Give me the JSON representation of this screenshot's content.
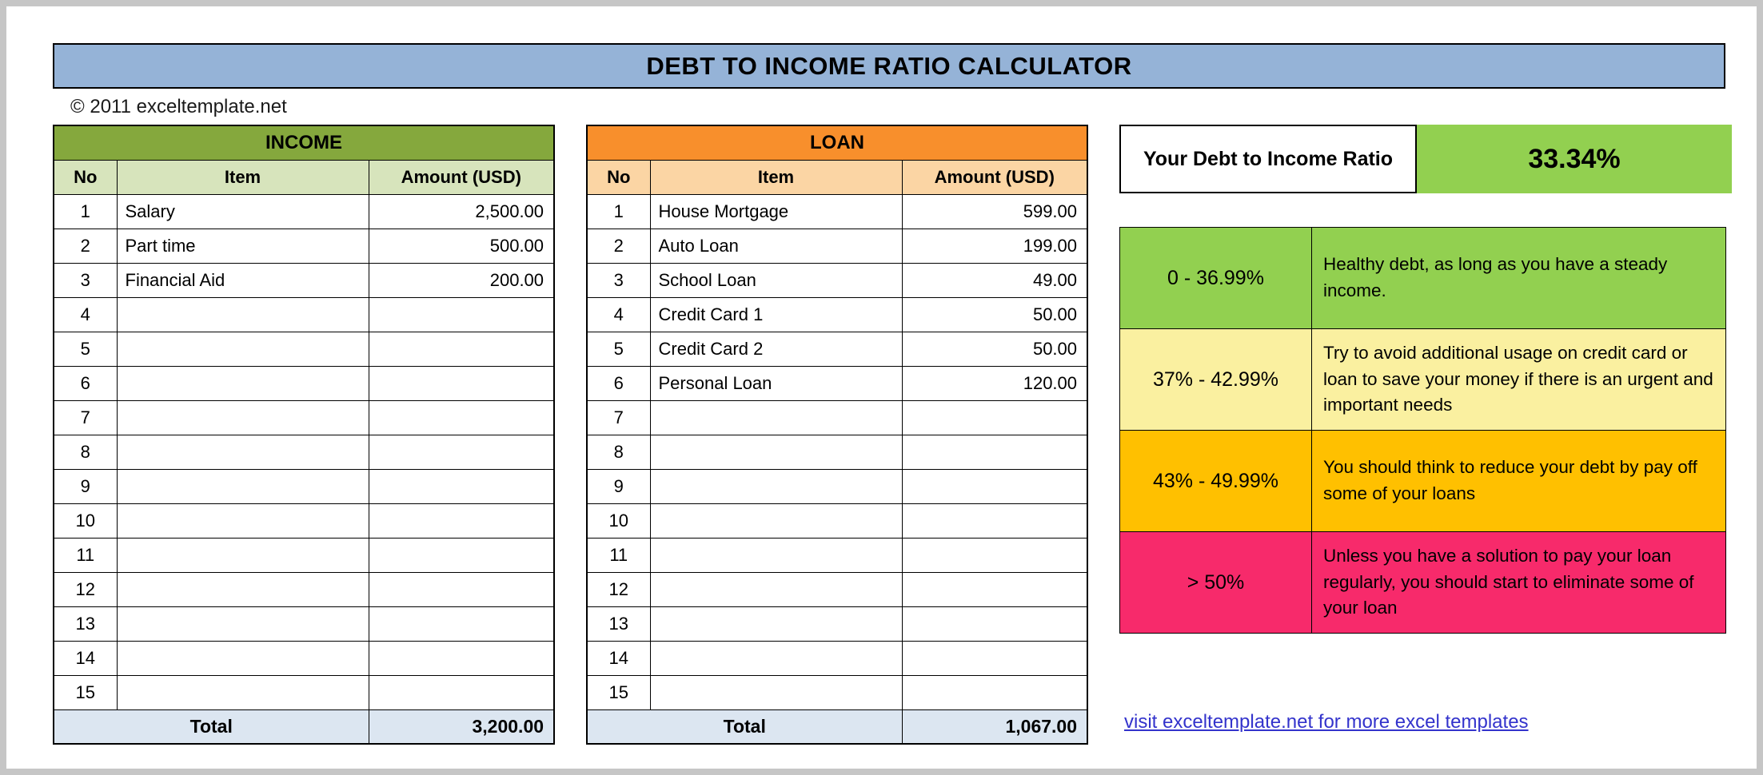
{
  "page": {
    "title": "DEBT TO INCOME RATIO CALCULATOR",
    "copyright": "© 2011 exceltemplate.net",
    "link": "visit exceltemplate.net for more excel templates"
  },
  "ratio": {
    "label": "Your Debt to Income Ratio",
    "value": "33.34%",
    "value_color": "#92D050"
  },
  "income_table": {
    "title": "INCOME",
    "headers": [
      "No",
      "Item",
      "Amount (USD)"
    ],
    "rows": [
      {
        "no": "1",
        "item": "Salary",
        "amount": "2,500.00"
      },
      {
        "no": "2",
        "item": "Part time",
        "amount": "500.00"
      },
      {
        "no": "3",
        "item": "Financial Aid",
        "amount": "200.00"
      },
      {
        "no": "4",
        "item": "",
        "amount": ""
      },
      {
        "no": "5",
        "item": "",
        "amount": ""
      },
      {
        "no": "6",
        "item": "",
        "amount": ""
      },
      {
        "no": "7",
        "item": "",
        "amount": ""
      },
      {
        "no": "8",
        "item": "",
        "amount": ""
      },
      {
        "no": "9",
        "item": "",
        "amount": ""
      },
      {
        "no": "10",
        "item": "",
        "amount": ""
      },
      {
        "no": "11",
        "item": "",
        "amount": ""
      },
      {
        "no": "12",
        "item": "",
        "amount": ""
      },
      {
        "no": "13",
        "item": "",
        "amount": ""
      },
      {
        "no": "14",
        "item": "",
        "amount": ""
      },
      {
        "no": "15",
        "item": "",
        "amount": ""
      }
    ],
    "total_label": "Total",
    "total": "3,200.00",
    "header_color": "#85A83D",
    "subheader_color": "#D7E4BC"
  },
  "loan_table": {
    "title": "LOAN",
    "headers": [
      "No",
      "Item",
      "Amount (USD)"
    ],
    "rows": [
      {
        "no": "1",
        "item": "House Mortgage",
        "amount": "599.00"
      },
      {
        "no": "2",
        "item": "Auto Loan",
        "amount": "199.00"
      },
      {
        "no": "3",
        "item": "School Loan",
        "amount": "49.00"
      },
      {
        "no": "4",
        "item": "Credit Card 1",
        "amount": "50.00"
      },
      {
        "no": "5",
        "item": "Credit Card 2",
        "amount": "50.00"
      },
      {
        "no": "6",
        "item": "Personal Loan",
        "amount": "120.00"
      },
      {
        "no": "7",
        "item": "",
        "amount": ""
      },
      {
        "no": "8",
        "item": "",
        "amount": ""
      },
      {
        "no": "9",
        "item": "",
        "amount": ""
      },
      {
        "no": "10",
        "item": "",
        "amount": ""
      },
      {
        "no": "11",
        "item": "",
        "amount": ""
      },
      {
        "no": "12",
        "item": "",
        "amount": ""
      },
      {
        "no": "13",
        "item": "",
        "amount": ""
      },
      {
        "no": "14",
        "item": "",
        "amount": ""
      },
      {
        "no": "15",
        "item": "",
        "amount": ""
      }
    ],
    "total_label": "Total",
    "total": "1,067.00",
    "header_color": "#F88F2C",
    "subheader_color": "#FBD5A4"
  },
  "legend": {
    "rows": [
      {
        "range": "0 - 36.99%",
        "description": "Healthy debt, as long as you have a steady income.",
        "color": "#92D050"
      },
      {
        "range": "37% - 42.99%",
        "description": "Try to avoid additional usage on credit card or loan to save your money if there is an urgent and important needs",
        "color": "#FAF0A0"
      },
      {
        "range": "43% - 49.99%",
        "description": "You should think to reduce your debt by pay off some of your loans",
        "color": "#FFC000"
      },
      {
        "range": "> 50%",
        "description": "Unless you have a solution to pay your loan regularly, you should start to eliminate some of your loan",
        "color": "#F72A6B"
      }
    ]
  }
}
